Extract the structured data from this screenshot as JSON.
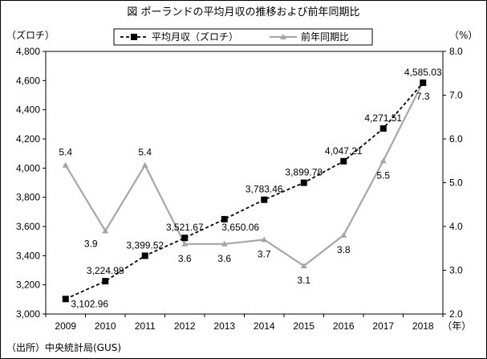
{
  "chart_data": {
    "type": "line",
    "title": "図 ポーランドの平均月収の推移および前年同期比",
    "y_left_label": "（ズロチ）",
    "y_right_label": "（%）",
    "x_unit": "（年）",
    "source": "（出所）中央統計局(GUS)",
    "categories": [
      "2009",
      "2010",
      "2011",
      "2012",
      "2013",
      "2014",
      "2015",
      "2016",
      "2017",
      "2018"
    ],
    "y_left_lim": [
      3000,
      4800
    ],
    "y_left_ticks": [
      "3,000",
      "3,200",
      "3,400",
      "3,600",
      "3,800",
      "4,000",
      "4,200",
      "4,400",
      "4,600",
      "4,800"
    ],
    "y_right_lim": [
      2.0,
      8.0
    ],
    "y_right_ticks": [
      "2.0",
      "3.0",
      "4.0",
      "5.0",
      "6.0",
      "7.0",
      "8.0"
    ],
    "legend_position": "top-center",
    "series": [
      {
        "name": "平均月収（ズロチ）",
        "axis": "left",
        "color": "#000000",
        "values": [
          3102.96,
          3224.98,
          3399.52,
          3521.67,
          3650.06,
          3783.46,
          3899.78,
          4047.21,
          4271.51,
          4585.03
        ],
        "labels": [
          "3,102.96",
          "3,224.98",
          "3,399.52",
          "3,521.67",
          "3,650.06",
          "3,783.46",
          "3,899.78",
          "4,047.21",
          "4,271.51",
          "4,585.03"
        ]
      },
      {
        "name": "前年同期比",
        "axis": "right",
        "color": "#a6a6a6",
        "values": [
          5.4,
          3.9,
          5.4,
          3.6,
          3.6,
          3.7,
          3.1,
          3.8,
          5.5,
          7.3
        ],
        "labels": [
          "5.4",
          "3.9",
          "5.4",
          "3.6",
          "3.6",
          "3.7",
          "3.1",
          "3.8",
          "5.5",
          "7.3"
        ]
      }
    ]
  }
}
